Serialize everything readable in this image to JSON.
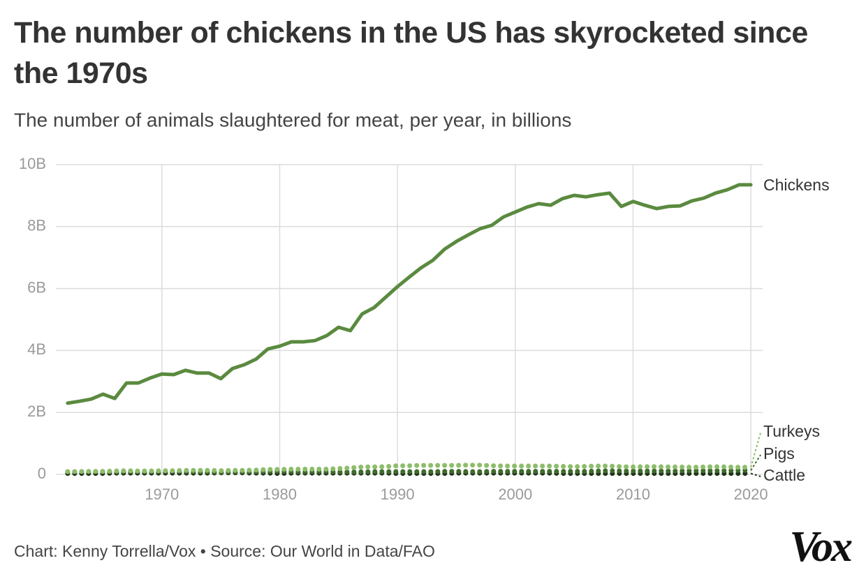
{
  "chart_data": {
    "type": "line",
    "title": "The number of chickens in the US has skyrocketed since the 1970s",
    "subtitle": "The number of animals slaughtered for meat, per year, in billions",
    "source": "Chart: Kenny Torrella/Vox • Source: Our World in Data/FAO",
    "logo": "Vox",
    "x": [
      1962,
      1963,
      1964,
      1965,
      1966,
      1967,
      1968,
      1969,
      1970,
      1971,
      1972,
      1973,
      1974,
      1975,
      1976,
      1977,
      1978,
      1979,
      1980,
      1981,
      1982,
      1983,
      1984,
      1985,
      1986,
      1987,
      1988,
      1989,
      1990,
      1991,
      1992,
      1993,
      1994,
      1995,
      1996,
      1997,
      1998,
      1999,
      2000,
      2001,
      2002,
      2003,
      2004,
      2005,
      2006,
      2007,
      2008,
      2009,
      2010,
      2011,
      2012,
      2013,
      2014,
      2015,
      2016,
      2017,
      2018,
      2019,
      2020
    ],
    "series": [
      {
        "name": "Chickens",
        "color": "#5a8a3f",
        "style": "solid",
        "values": [
          2.3,
          2.36,
          2.43,
          2.59,
          2.45,
          2.95,
          2.95,
          3.11,
          3.24,
          3.22,
          3.36,
          3.27,
          3.27,
          3.09,
          3.42,
          3.54,
          3.72,
          4.05,
          4.14,
          4.28,
          4.28,
          4.32,
          4.48,
          4.75,
          4.64,
          5.18,
          5.38,
          5.72,
          6.06,
          6.37,
          6.67,
          6.91,
          7.27,
          7.52,
          7.73,
          7.93,
          8.04,
          8.31,
          8.47,
          8.63,
          8.74,
          8.69,
          8.9,
          9.01,
          8.96,
          9.03,
          9.08,
          8.65,
          8.81,
          8.69,
          8.58,
          8.65,
          8.67,
          8.83,
          8.92,
          9.08,
          9.19,
          9.35,
          9.35
        ]
      },
      {
        "name": "Turkeys",
        "color": "#8dbd6a",
        "style": "dotted",
        "values": [
          0.09,
          0.09,
          0.1,
          0.1,
          0.11,
          0.12,
          0.11,
          0.11,
          0.12,
          0.12,
          0.13,
          0.13,
          0.13,
          0.12,
          0.13,
          0.13,
          0.14,
          0.16,
          0.16,
          0.17,
          0.17,
          0.17,
          0.17,
          0.19,
          0.21,
          0.24,
          0.24,
          0.25,
          0.28,
          0.28,
          0.29,
          0.29,
          0.29,
          0.29,
          0.3,
          0.3,
          0.28,
          0.27,
          0.27,
          0.27,
          0.27,
          0.27,
          0.26,
          0.25,
          0.26,
          0.27,
          0.27,
          0.25,
          0.24,
          0.25,
          0.25,
          0.24,
          0.24,
          0.23,
          0.24,
          0.25,
          0.24,
          0.23,
          0.23
        ]
      },
      {
        "name": "Pigs",
        "color": "#3f6b2c",
        "style": "dotted",
        "values": [
          0.08,
          0.09,
          0.09,
          0.08,
          0.08,
          0.09,
          0.09,
          0.09,
          0.09,
          0.1,
          0.09,
          0.08,
          0.08,
          0.07,
          0.08,
          0.08,
          0.08,
          0.09,
          0.1,
          0.09,
          0.08,
          0.09,
          0.09,
          0.08,
          0.08,
          0.08,
          0.09,
          0.09,
          0.09,
          0.09,
          0.09,
          0.09,
          0.1,
          0.1,
          0.09,
          0.09,
          0.1,
          0.1,
          0.1,
          0.1,
          0.1,
          0.1,
          0.1,
          0.1,
          0.1,
          0.11,
          0.12,
          0.11,
          0.11,
          0.11,
          0.11,
          0.11,
          0.11,
          0.12,
          0.12,
          0.12,
          0.12,
          0.13,
          0.13
        ]
      },
      {
        "name": "Cattle",
        "color": "#1c3314",
        "style": "dotted",
        "values": [
          0.03,
          0.03,
          0.03,
          0.03,
          0.04,
          0.04,
          0.04,
          0.04,
          0.04,
          0.04,
          0.04,
          0.04,
          0.04,
          0.05,
          0.05,
          0.05,
          0.04,
          0.04,
          0.03,
          0.04,
          0.04,
          0.04,
          0.04,
          0.04,
          0.04,
          0.04,
          0.04,
          0.04,
          0.03,
          0.03,
          0.03,
          0.03,
          0.03,
          0.04,
          0.04,
          0.04,
          0.04,
          0.04,
          0.04,
          0.04,
          0.04,
          0.04,
          0.03,
          0.03,
          0.03,
          0.03,
          0.03,
          0.03,
          0.03,
          0.03,
          0.03,
          0.03,
          0.03,
          0.03,
          0.03,
          0.03,
          0.03,
          0.03,
          0.03
        ]
      }
    ],
    "xlim": [
      1961,
      2021
    ],
    "xticks": [
      1970,
      1980,
      1990,
      2000,
      2010,
      2020
    ],
    "ylim": [
      0,
      10
    ],
    "yticks": [
      0,
      {
        "value": 2,
        "label": "2B"
      },
      {
        "value": 4,
        "label": "4B"
      },
      {
        "value": 6,
        "label": "6B"
      },
      {
        "value": 8,
        "label": "8B"
      },
      {
        "value": 10,
        "label": "10B"
      }
    ],
    "grid": true
  }
}
